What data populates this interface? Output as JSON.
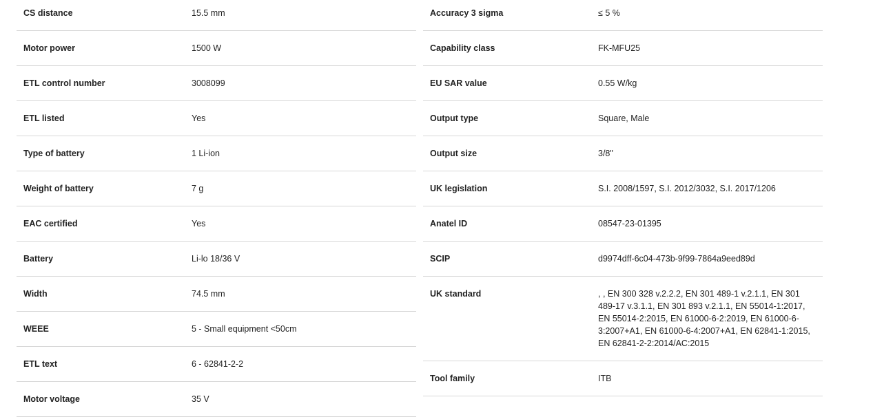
{
  "left": [
    {
      "label": "CS distance",
      "value": "15.5 mm"
    },
    {
      "label": "Motor power",
      "value": "1500 W"
    },
    {
      "label": "ETL control number",
      "value": "3008099"
    },
    {
      "label": "ETL listed",
      "value": "Yes"
    },
    {
      "label": "Type of battery",
      "value": "1 Li-ion"
    },
    {
      "label": "Weight of battery",
      "value": "7 g"
    },
    {
      "label": "EAC certified",
      "value": "Yes"
    },
    {
      "label": "Battery",
      "value": "Li-lo 18/36 V"
    },
    {
      "label": "Width",
      "value": "74.5 mm"
    },
    {
      "label": "WEEE",
      "value": "5 - Small equipment <50cm"
    },
    {
      "label": "ETL text",
      "value": "6 - 62841-2-2"
    },
    {
      "label": "Motor voltage",
      "value": "35 V"
    }
  ],
  "right": [
    {
      "label": "Accuracy 3 sigma",
      "value": "≤ 5 %"
    },
    {
      "label": "Capability class",
      "value": "FK-MFU25"
    },
    {
      "label": "EU SAR value",
      "value": "0.55 W/kg"
    },
    {
      "label": "Output type",
      "value": "Square, Male"
    },
    {
      "label": "Output size",
      "value": "3/8\""
    },
    {
      "label": "UK legislation",
      "value": "S.I. 2008/1597, S.I. 2012/3032, S.I. 2017/1206"
    },
    {
      "label": "Anatel ID",
      "value": "08547-23-01395"
    },
    {
      "label": "SCIP",
      "value": "d9974dff-6c04-473b-9f99-7864a9eed89d"
    },
    {
      "label": "UK standard",
      "value": ", , EN 300 328 v.2.2.2, EN 301 489-1 v.2.1.1, EN 301 489-17 v.3.1.1, EN 301 893 v.2.1.1, EN 55014-1:2017, EN 55014-2:2015, EN 61000-6-2:2019, EN 61000-6-3:2007+A1, EN 61000-6-4:2007+A1, EN 62841-1:2015, EN 62841-2-2:2014/AC:2015"
    },
    {
      "label": "Tool family",
      "value": "ITB"
    }
  ]
}
